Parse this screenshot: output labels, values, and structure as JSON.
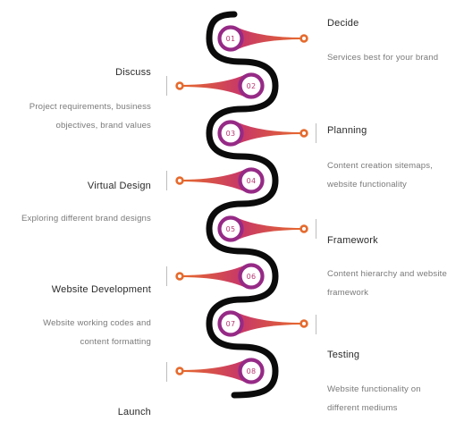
{
  "palette": {
    "snake": "#0b0b0b",
    "ring": "#962a86",
    "number": "#b83672",
    "pin_pink": "#c6356b",
    "pin_orange": "#e66a2d"
  },
  "steps": [
    {
      "number": "01",
      "title": "Decide",
      "description": "Services best for your brand"
    },
    {
      "number": "02",
      "title": "Discuss",
      "description": "Project requirements, business objectives, brand values"
    },
    {
      "number": "03",
      "title": "Planning",
      "description": "Content creation sitemaps, website functionality"
    },
    {
      "number": "04",
      "title": "Virtual Design",
      "description": "Exploring different brand designs"
    },
    {
      "number": "05",
      "title": "Framework",
      "description": "Content hierarchy and website framework"
    },
    {
      "number": "06",
      "title": "Website Development",
      "description": "Website working codes and content formatting"
    },
    {
      "number": "07",
      "title": "Testing",
      "description": "Website functionality on different mediums"
    },
    {
      "number": "08",
      "title": "Launch",
      "description": ""
    }
  ]
}
